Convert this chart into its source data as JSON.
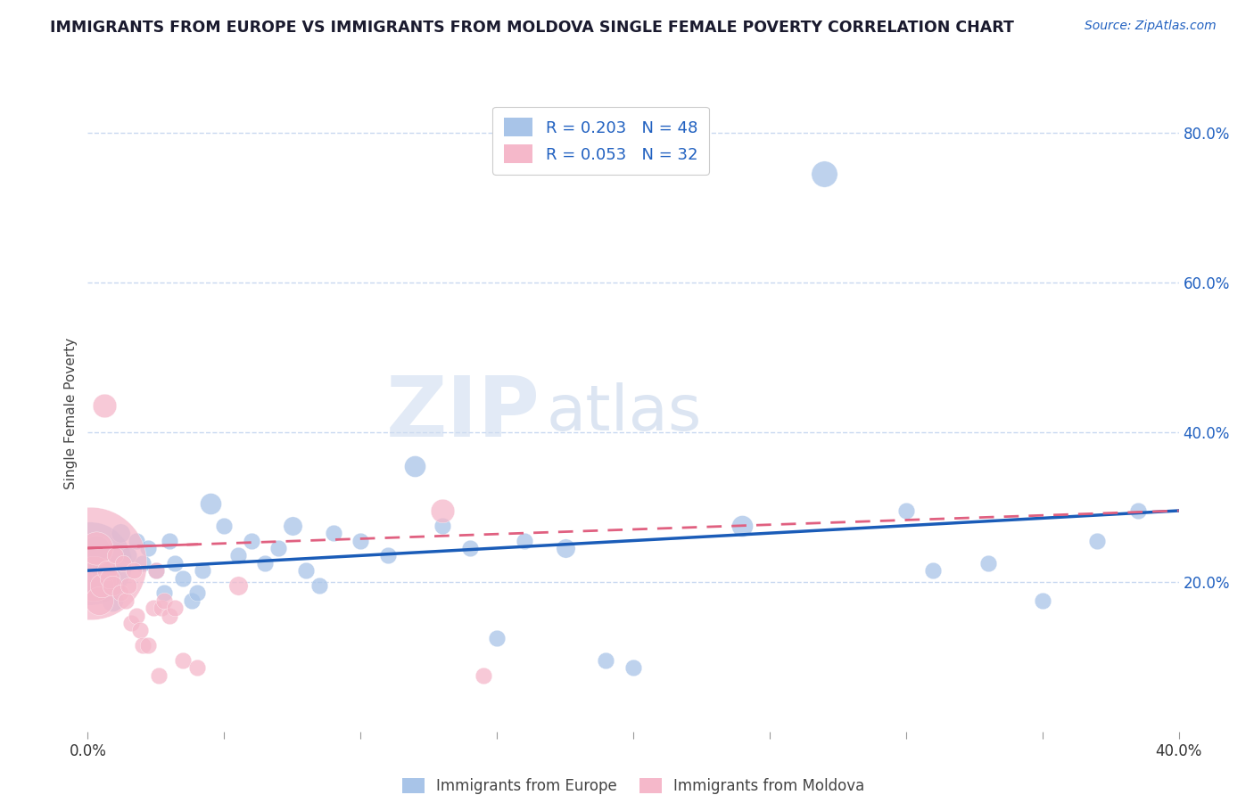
{
  "title": "IMMIGRANTS FROM EUROPE VS IMMIGRANTS FROM MOLDOVA SINGLE FEMALE POVERTY CORRELATION CHART",
  "source": "Source: ZipAtlas.com",
  "ylabel": "Single Female Poverty",
  "xlim": [
    0.0,
    0.4
  ],
  "ylim": [
    0.0,
    0.85
  ],
  "x_ticks": [
    0.0,
    0.05,
    0.1,
    0.15,
    0.2,
    0.25,
    0.3,
    0.35,
    0.4
  ],
  "y_ticks_right": [
    0.2,
    0.4,
    0.6,
    0.8
  ],
  "y_tick_labels_right": [
    "20.0%",
    "40.0%",
    "60.0%",
    "80.0%"
  ],
  "legend_blue_R": "R = 0.203",
  "legend_blue_N": "N = 48",
  "legend_pink_R": "R = 0.053",
  "legend_pink_N": "N = 32",
  "blue_label": "Immigrants from Europe",
  "pink_label": "Immigrants from Moldova",
  "blue_color": "#a8c4e8",
  "pink_color": "#f5b8ca",
  "blue_line_color": "#1a5cb8",
  "pink_line_color": "#e06080",
  "blue_line_y0": 0.215,
  "blue_line_y1": 0.295,
  "pink_line_y0": 0.245,
  "pink_line_y1": 0.295,
  "blue_points": [
    [
      0.001,
      0.225,
      70
    ],
    [
      0.002,
      0.205,
      28
    ],
    [
      0.003,
      0.245,
      22
    ],
    [
      0.005,
      0.215,
      18
    ],
    [
      0.007,
      0.205,
      16
    ],
    [
      0.009,
      0.175,
      18
    ],
    [
      0.01,
      0.195,
      16
    ],
    [
      0.012,
      0.265,
      16
    ],
    [
      0.015,
      0.235,
      14
    ],
    [
      0.018,
      0.255,
      14
    ],
    [
      0.02,
      0.225,
      14
    ],
    [
      0.022,
      0.245,
      14
    ],
    [
      0.025,
      0.215,
      14
    ],
    [
      0.028,
      0.185,
      14
    ],
    [
      0.03,
      0.255,
      14
    ],
    [
      0.032,
      0.225,
      14
    ],
    [
      0.035,
      0.205,
      14
    ],
    [
      0.038,
      0.175,
      14
    ],
    [
      0.04,
      0.185,
      14
    ],
    [
      0.042,
      0.215,
      14
    ],
    [
      0.045,
      0.305,
      18
    ],
    [
      0.05,
      0.275,
      14
    ],
    [
      0.055,
      0.235,
      14
    ],
    [
      0.06,
      0.255,
      14
    ],
    [
      0.065,
      0.225,
      14
    ],
    [
      0.07,
      0.245,
      14
    ],
    [
      0.075,
      0.275,
      16
    ],
    [
      0.08,
      0.215,
      14
    ],
    [
      0.085,
      0.195,
      14
    ],
    [
      0.09,
      0.265,
      14
    ],
    [
      0.1,
      0.255,
      14
    ],
    [
      0.11,
      0.235,
      14
    ],
    [
      0.12,
      0.355,
      18
    ],
    [
      0.13,
      0.275,
      14
    ],
    [
      0.14,
      0.245,
      14
    ],
    [
      0.15,
      0.125,
      14
    ],
    [
      0.16,
      0.255,
      14
    ],
    [
      0.175,
      0.245,
      16
    ],
    [
      0.19,
      0.095,
      14
    ],
    [
      0.2,
      0.085,
      14
    ],
    [
      0.24,
      0.275,
      18
    ],
    [
      0.27,
      0.745,
      22
    ],
    [
      0.3,
      0.295,
      14
    ],
    [
      0.31,
      0.215,
      14
    ],
    [
      0.33,
      0.225,
      14
    ],
    [
      0.35,
      0.175,
      14
    ],
    [
      0.37,
      0.255,
      14
    ],
    [
      0.385,
      0.295,
      14
    ]
  ],
  "pink_points": [
    [
      0.001,
      0.225,
      95
    ],
    [
      0.002,
      0.205,
      38
    ],
    [
      0.003,
      0.245,
      28
    ],
    [
      0.004,
      0.175,
      24
    ],
    [
      0.005,
      0.195,
      20
    ],
    [
      0.006,
      0.435,
      20
    ],
    [
      0.007,
      0.215,
      17
    ],
    [
      0.008,
      0.205,
      17
    ],
    [
      0.009,
      0.195,
      17
    ],
    [
      0.01,
      0.235,
      14
    ],
    [
      0.012,
      0.185,
      14
    ],
    [
      0.013,
      0.225,
      14
    ],
    [
      0.014,
      0.175,
      14
    ],
    [
      0.015,
      0.195,
      14
    ],
    [
      0.016,
      0.145,
      14
    ],
    [
      0.017,
      0.215,
      14
    ],
    [
      0.018,
      0.155,
      14
    ],
    [
      0.019,
      0.135,
      14
    ],
    [
      0.02,
      0.115,
      14
    ],
    [
      0.022,
      0.115,
      14
    ],
    [
      0.024,
      0.165,
      14
    ],
    [
      0.025,
      0.215,
      14
    ],
    [
      0.026,
      0.075,
      14
    ],
    [
      0.027,
      0.165,
      14
    ],
    [
      0.028,
      0.175,
      14
    ],
    [
      0.03,
      0.155,
      14
    ],
    [
      0.032,
      0.165,
      14
    ],
    [
      0.035,
      0.095,
      14
    ],
    [
      0.04,
      0.085,
      14
    ],
    [
      0.055,
      0.195,
      16
    ],
    [
      0.13,
      0.295,
      20
    ],
    [
      0.145,
      0.075,
      14
    ]
  ],
  "background_color": "#ffffff",
  "grid_color": "#c8d8f0",
  "title_color": "#1a1a2e",
  "text_color": "#2060c0"
}
